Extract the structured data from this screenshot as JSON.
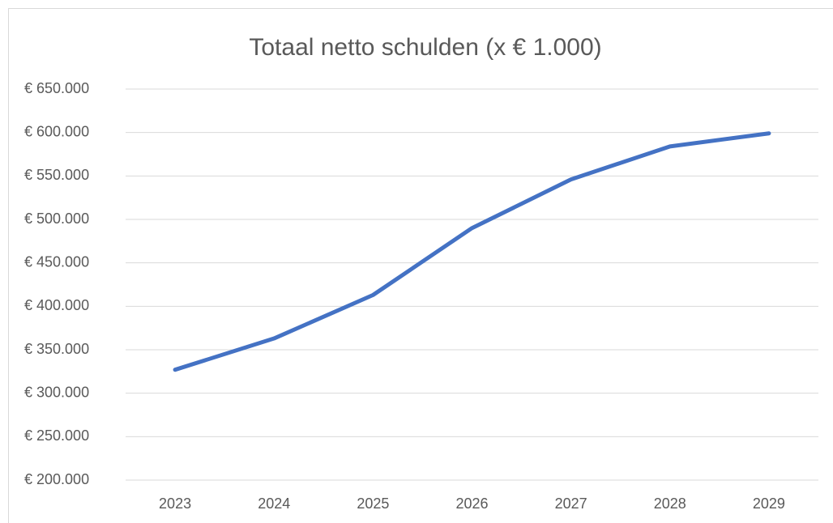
{
  "chart_data": {
    "type": "line",
    "title": "Totaal netto schulden (x € 1.000)",
    "categories": [
      "2023",
      "2024",
      "2025",
      "2026",
      "2027",
      "2028",
      "2029"
    ],
    "values": [
      327000,
      363000,
      413000,
      490000,
      546000,
      584000,
      599000
    ],
    "color": "#4472c4",
    "ylim": [
      200000,
      650000
    ],
    "yticks": [
      {
        "value": 200000,
        "label": "€ 200.000"
      },
      {
        "value": 250000,
        "label": "€ 250.000"
      },
      {
        "value": 300000,
        "label": "€ 300.000"
      },
      {
        "value": 350000,
        "label": "€ 350.000"
      },
      {
        "value": 400000,
        "label": "€ 400.000"
      },
      {
        "value": 450000,
        "label": "€ 450.000"
      },
      {
        "value": 500000,
        "label": "€ 500.000"
      },
      {
        "value": 550000,
        "label": "€ 550.000"
      },
      {
        "value": 600000,
        "label": "€ 600.000"
      },
      {
        "value": 650000,
        "label": "€ 650.000"
      }
    ],
    "grid": true
  }
}
